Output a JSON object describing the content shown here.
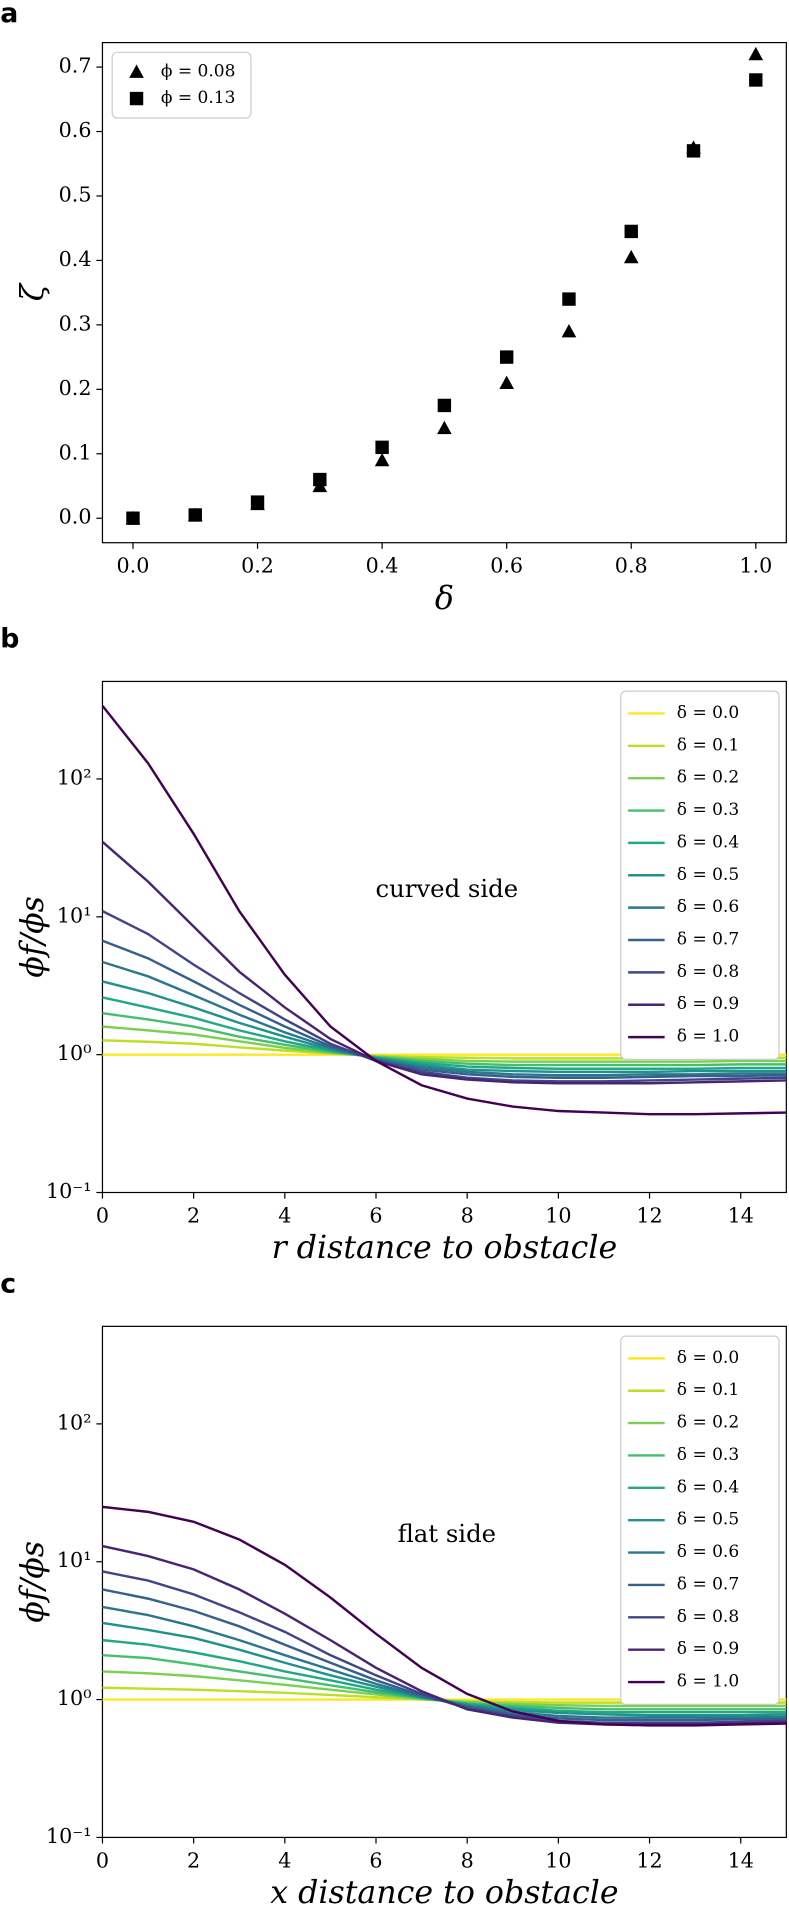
{
  "chart_data": [
    {
      "type": "scatter",
      "panel": "a",
      "xlabel": "δ",
      "ylabel": "ζ",
      "legend": "upper left",
      "x": [
        0,
        0.1,
        0.2,
        0.3,
        0.4,
        0.5,
        0.6,
        0.7,
        0.8,
        0.9,
        1.0
      ],
      "series": [
        {
          "name": "ϕ = 0.08",
          "marker": "triangle",
          "color": "#000000",
          "values": [
            0,
            0.005,
            0.022,
            0.05,
            0.09,
            0.14,
            0.21,
            0.29,
            0.405,
            0.575,
            0.72
          ]
        },
        {
          "name": "ϕ = 0.13",
          "marker": "square",
          "color": "#000000",
          "values": [
            0,
            0.005,
            0.025,
            0.06,
            0.11,
            0.175,
            0.25,
            0.34,
            0.445,
            0.57,
            0.68
          ]
        }
      ],
      "xlim": [
        -0.049,
        1.049
      ],
      "ylim": [
        -0.038,
        0.738
      ],
      "xticks": [
        {
          "value": 0,
          "label": "0.0"
        },
        {
          "value": 0.2,
          "label": "0.2"
        },
        {
          "value": 0.4,
          "label": "0.4"
        },
        {
          "value": 0.6,
          "label": "0.6"
        },
        {
          "value": 0.8,
          "label": "0.8"
        },
        {
          "value": 1,
          "label": "1.0"
        }
      ],
      "yticks": [
        {
          "value": 0,
          "label": "0.0"
        },
        {
          "value": 0.1,
          "label": "0.1"
        },
        {
          "value": 0.2,
          "label": "0.2"
        },
        {
          "value": 0.3,
          "label": "0.3"
        },
        {
          "value": 0.4,
          "label": "0.4"
        },
        {
          "value": 0.5,
          "label": "0.5"
        },
        {
          "value": 0.6,
          "label": "0.6"
        },
        {
          "value": 0.7,
          "label": "0.7"
        }
      ]
    },
    {
      "type": "line",
      "panel": "b",
      "xlabel": "r distance to obstacle",
      "ylabel": "ϕf/ϕs",
      "annotation": "curved side",
      "legend": "upper right",
      "ylog": true,
      "x": [
        0,
        1,
        2,
        3,
        4,
        5,
        6,
        7,
        8,
        9,
        10,
        11,
        12,
        13,
        14,
        15
      ],
      "series": [
        {
          "name": "δ = 0.0",
          "color": "#fde725",
          "values": [
            1,
            1,
            1,
            1,
            1,
            1,
            1,
            1,
            1,
            1,
            1,
            1,
            1,
            1,
            1,
            1
          ]
        },
        {
          "name": "δ = 0.1",
          "color": "#bddf26",
          "values": [
            1.27,
            1.24,
            1.2,
            1.13,
            1.07,
            1.02,
            0.98,
            0.96,
            0.95,
            0.94,
            0.94,
            0.94,
            0.94,
            0.95,
            0.95,
            0.95
          ]
        },
        {
          "name": "δ = 0.2",
          "color": "#7ad151",
          "values": [
            1.6,
            1.5,
            1.4,
            1.25,
            1.12,
            1.03,
            0.97,
            0.93,
            0.9,
            0.89,
            0.89,
            0.89,
            0.89,
            0.89,
            0.9,
            0.9
          ]
        },
        {
          "name": "δ = 0.3",
          "color": "#44bf70",
          "values": [
            2.0,
            1.8,
            1.6,
            1.35,
            1.18,
            1.05,
            0.96,
            0.9,
            0.86,
            0.84,
            0.84,
            0.84,
            0.84,
            0.84,
            0.85,
            0.85
          ]
        },
        {
          "name": "δ = 0.4",
          "color": "#22a884",
          "values": [
            2.6,
            2.2,
            1.85,
            1.5,
            1.25,
            1.07,
            0.95,
            0.87,
            0.82,
            0.8,
            0.79,
            0.79,
            0.79,
            0.79,
            0.8,
            0.8
          ]
        },
        {
          "name": "δ = 0.5",
          "color": "#21918c",
          "values": [
            3.4,
            2.8,
            2.2,
            1.7,
            1.35,
            1.09,
            0.94,
            0.84,
            0.78,
            0.76,
            0.75,
            0.75,
            0.75,
            0.76,
            0.76,
            0.76
          ]
        },
        {
          "name": "δ = 0.6",
          "color": "#2a788e",
          "values": [
            4.7,
            3.7,
            2.7,
            1.95,
            1.45,
            1.12,
            0.93,
            0.81,
            0.75,
            0.72,
            0.71,
            0.71,
            0.72,
            0.72,
            0.73,
            0.73
          ]
        },
        {
          "name": "δ = 0.7",
          "color": "#355f8d",
          "values": [
            6.7,
            5,
            3.4,
            2.3,
            1.6,
            1.15,
            0.92,
            0.78,
            0.72,
            0.69,
            0.68,
            0.68,
            0.69,
            0.7,
            0.7,
            0.71
          ]
        },
        {
          "name": "δ = 0.8",
          "color": "#414487",
          "values": [
            11,
            7.5,
            4.5,
            2.8,
            1.8,
            1.2,
            0.9,
            0.75,
            0.68,
            0.65,
            0.64,
            0.64,
            0.65,
            0.66,
            0.67,
            0.68
          ]
        },
        {
          "name": "δ = 0.9",
          "color": "#482475",
          "values": [
            35,
            18,
            8.5,
            4,
            2.2,
            1.3,
            0.9,
            0.72,
            0.66,
            0.63,
            0.62,
            0.62,
            0.62,
            0.63,
            0.64,
            0.65
          ]
        },
        {
          "name": "δ = 1.0",
          "color": "#440154",
          "values": [
            340,
            130,
            40,
            11,
            3.8,
            1.6,
            0.9,
            0.6,
            0.48,
            0.42,
            0.39,
            0.38,
            0.37,
            0.37,
            0.375,
            0.38
          ]
        }
      ],
      "xlim": [
        0,
        15
      ],
      "ylim": [
        0.1,
        510
      ],
      "xticks": [
        0,
        2,
        4,
        6,
        8,
        10,
        12,
        14
      ],
      "yticks": [
        {
          "value": 0.1,
          "label": "10⁻¹"
        },
        {
          "value": 1,
          "label": "10⁰"
        },
        {
          "value": 10,
          "label": "10¹"
        },
        {
          "value": 100,
          "label": "10²"
        }
      ]
    },
    {
      "type": "line",
      "panel": "c",
      "xlabel": "x distance to obstacle",
      "ylabel": "ϕf/ϕs",
      "annotation": "flat side",
      "legend": "upper right",
      "ylog": true,
      "x": [
        0,
        1,
        2,
        3,
        4,
        5,
        6,
        7,
        8,
        9,
        10,
        11,
        12,
        13,
        14,
        15
      ],
      "series": [
        {
          "name": "δ = 0.0",
          "color": "#fde725",
          "values": [
            1,
            1,
            1,
            1,
            1,
            1,
            1,
            1,
            1,
            1,
            1,
            1,
            1,
            1,
            1,
            1
          ]
        },
        {
          "name": "δ = 0.1",
          "color": "#bddf26",
          "values": [
            1.22,
            1.2,
            1.18,
            1.15,
            1.12,
            1.08,
            1.04,
            1.0,
            0.97,
            0.96,
            0.95,
            0.95,
            0.95,
            0.95,
            0.95,
            0.95
          ]
        },
        {
          "name": "δ = 0.2",
          "color": "#7ad151",
          "values": [
            1.6,
            1.55,
            1.48,
            1.38,
            1.28,
            1.18,
            1.09,
            1.01,
            0.96,
            0.93,
            0.91,
            0.9,
            0.9,
            0.9,
            0.9,
            0.9
          ]
        },
        {
          "name": "δ = 0.3",
          "color": "#44bf70",
          "values": [
            2.1,
            2.0,
            1.8,
            1.6,
            1.43,
            1.27,
            1.13,
            1.02,
            0.94,
            0.9,
            0.87,
            0.85,
            0.85,
            0.85,
            0.85,
            0.85
          ]
        },
        {
          "name": "δ = 0.4",
          "color": "#22a884",
          "values": [
            2.7,
            2.5,
            2.2,
            1.9,
            1.6,
            1.38,
            1.18,
            1.03,
            0.93,
            0.87,
            0.83,
            0.81,
            0.81,
            0.81,
            0.81,
            0.81
          ]
        },
        {
          "name": "δ = 0.5",
          "color": "#21918c",
          "values": [
            3.6,
            3.2,
            2.8,
            2.3,
            1.85,
            1.5,
            1.24,
            1.04,
            0.91,
            0.84,
            0.8,
            0.78,
            0.77,
            0.77,
            0.77,
            0.78
          ]
        },
        {
          "name": "δ = 0.6",
          "color": "#2a788e",
          "values": [
            4.7,
            4.1,
            3.4,
            2.7,
            2.1,
            1.65,
            1.3,
            1.05,
            0.9,
            0.81,
            0.76,
            0.74,
            0.74,
            0.74,
            0.74,
            0.75
          ]
        },
        {
          "name": "δ = 0.7",
          "color": "#355f8d",
          "values": [
            6.3,
            5.4,
            4.4,
            3.4,
            2.5,
            1.85,
            1.38,
            1.07,
            0.88,
            0.78,
            0.73,
            0.71,
            0.71,
            0.71,
            0.72,
            0.72
          ]
        },
        {
          "name": "δ = 0.8",
          "color": "#414487",
          "values": [
            8.5,
            7.3,
            5.8,
            4.3,
            3.1,
            2.1,
            1.5,
            1.1,
            0.86,
            0.76,
            0.7,
            0.68,
            0.68,
            0.68,
            0.69,
            0.7
          ]
        },
        {
          "name": "δ = 0.9",
          "color": "#482475",
          "values": [
            13,
            11,
            8.8,
            6.3,
            4.2,
            2.7,
            1.7,
            1.15,
            0.85,
            0.74,
            0.68,
            0.66,
            0.66,
            0.66,
            0.67,
            0.68
          ]
        },
        {
          "name": "δ = 1.0",
          "color": "#440154",
          "values": [
            25,
            23,
            19.5,
            14.5,
            9.5,
            5.5,
            3,
            1.7,
            1.1,
            0.82,
            0.7,
            0.66,
            0.65,
            0.65,
            0.66,
            0.67
          ]
        }
      ],
      "xlim": [
        0,
        15
      ],
      "ylim": [
        0.1,
        510
      ],
      "xticks": [
        0,
        2,
        4,
        6,
        8,
        10,
        12,
        14
      ],
      "yticks": [
        {
          "value": 0.1,
          "label": "10⁻¹"
        },
        {
          "value": 1,
          "label": "10⁰"
        },
        {
          "value": 10,
          "label": "10¹"
        },
        {
          "value": 100,
          "label": "10²"
        }
      ]
    }
  ]
}
